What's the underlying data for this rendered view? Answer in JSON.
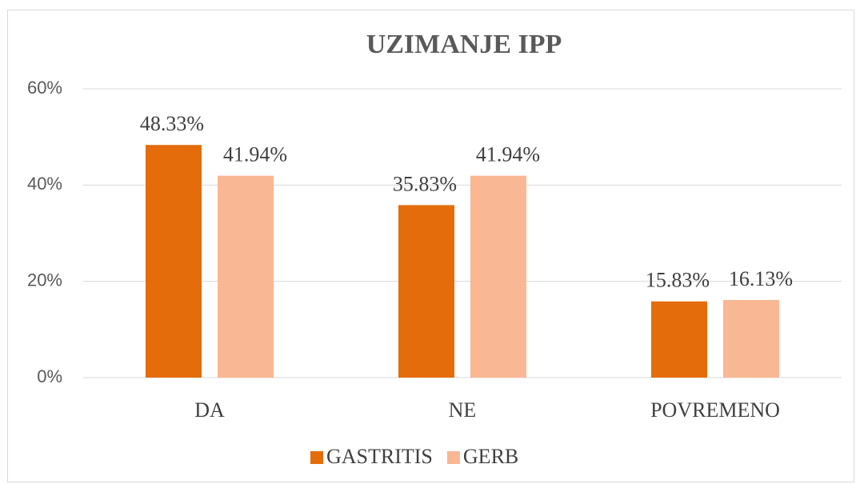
{
  "chart_data": {
    "type": "bar",
    "title": "UZIMANJE IPP",
    "categories": [
      "DA",
      "NE",
      "POVREMENO"
    ],
    "series": [
      {
        "name": "GASTRITIS",
        "color": "#e46c0a",
        "values": [
          48.33,
          35.83,
          15.83
        ],
        "value_labels": [
          "48.33%",
          "35.83%",
          "15.83%"
        ]
      },
      {
        "name": "GERB",
        "color": "#f9b794",
        "values": [
          41.94,
          41.94,
          16.13
        ],
        "value_labels": [
          "41.94%",
          "41.94%",
          "16.13%"
        ]
      }
    ],
    "ylim": [
      0,
      60
    ],
    "yticks": [
      {
        "value": 0,
        "label": "0%"
      },
      {
        "value": 20,
        "label": "20%"
      },
      {
        "value": 40,
        "label": "40%"
      },
      {
        "value": 60,
        "label": "60%"
      }
    ],
    "grid": true,
    "legend": "bottom"
  }
}
